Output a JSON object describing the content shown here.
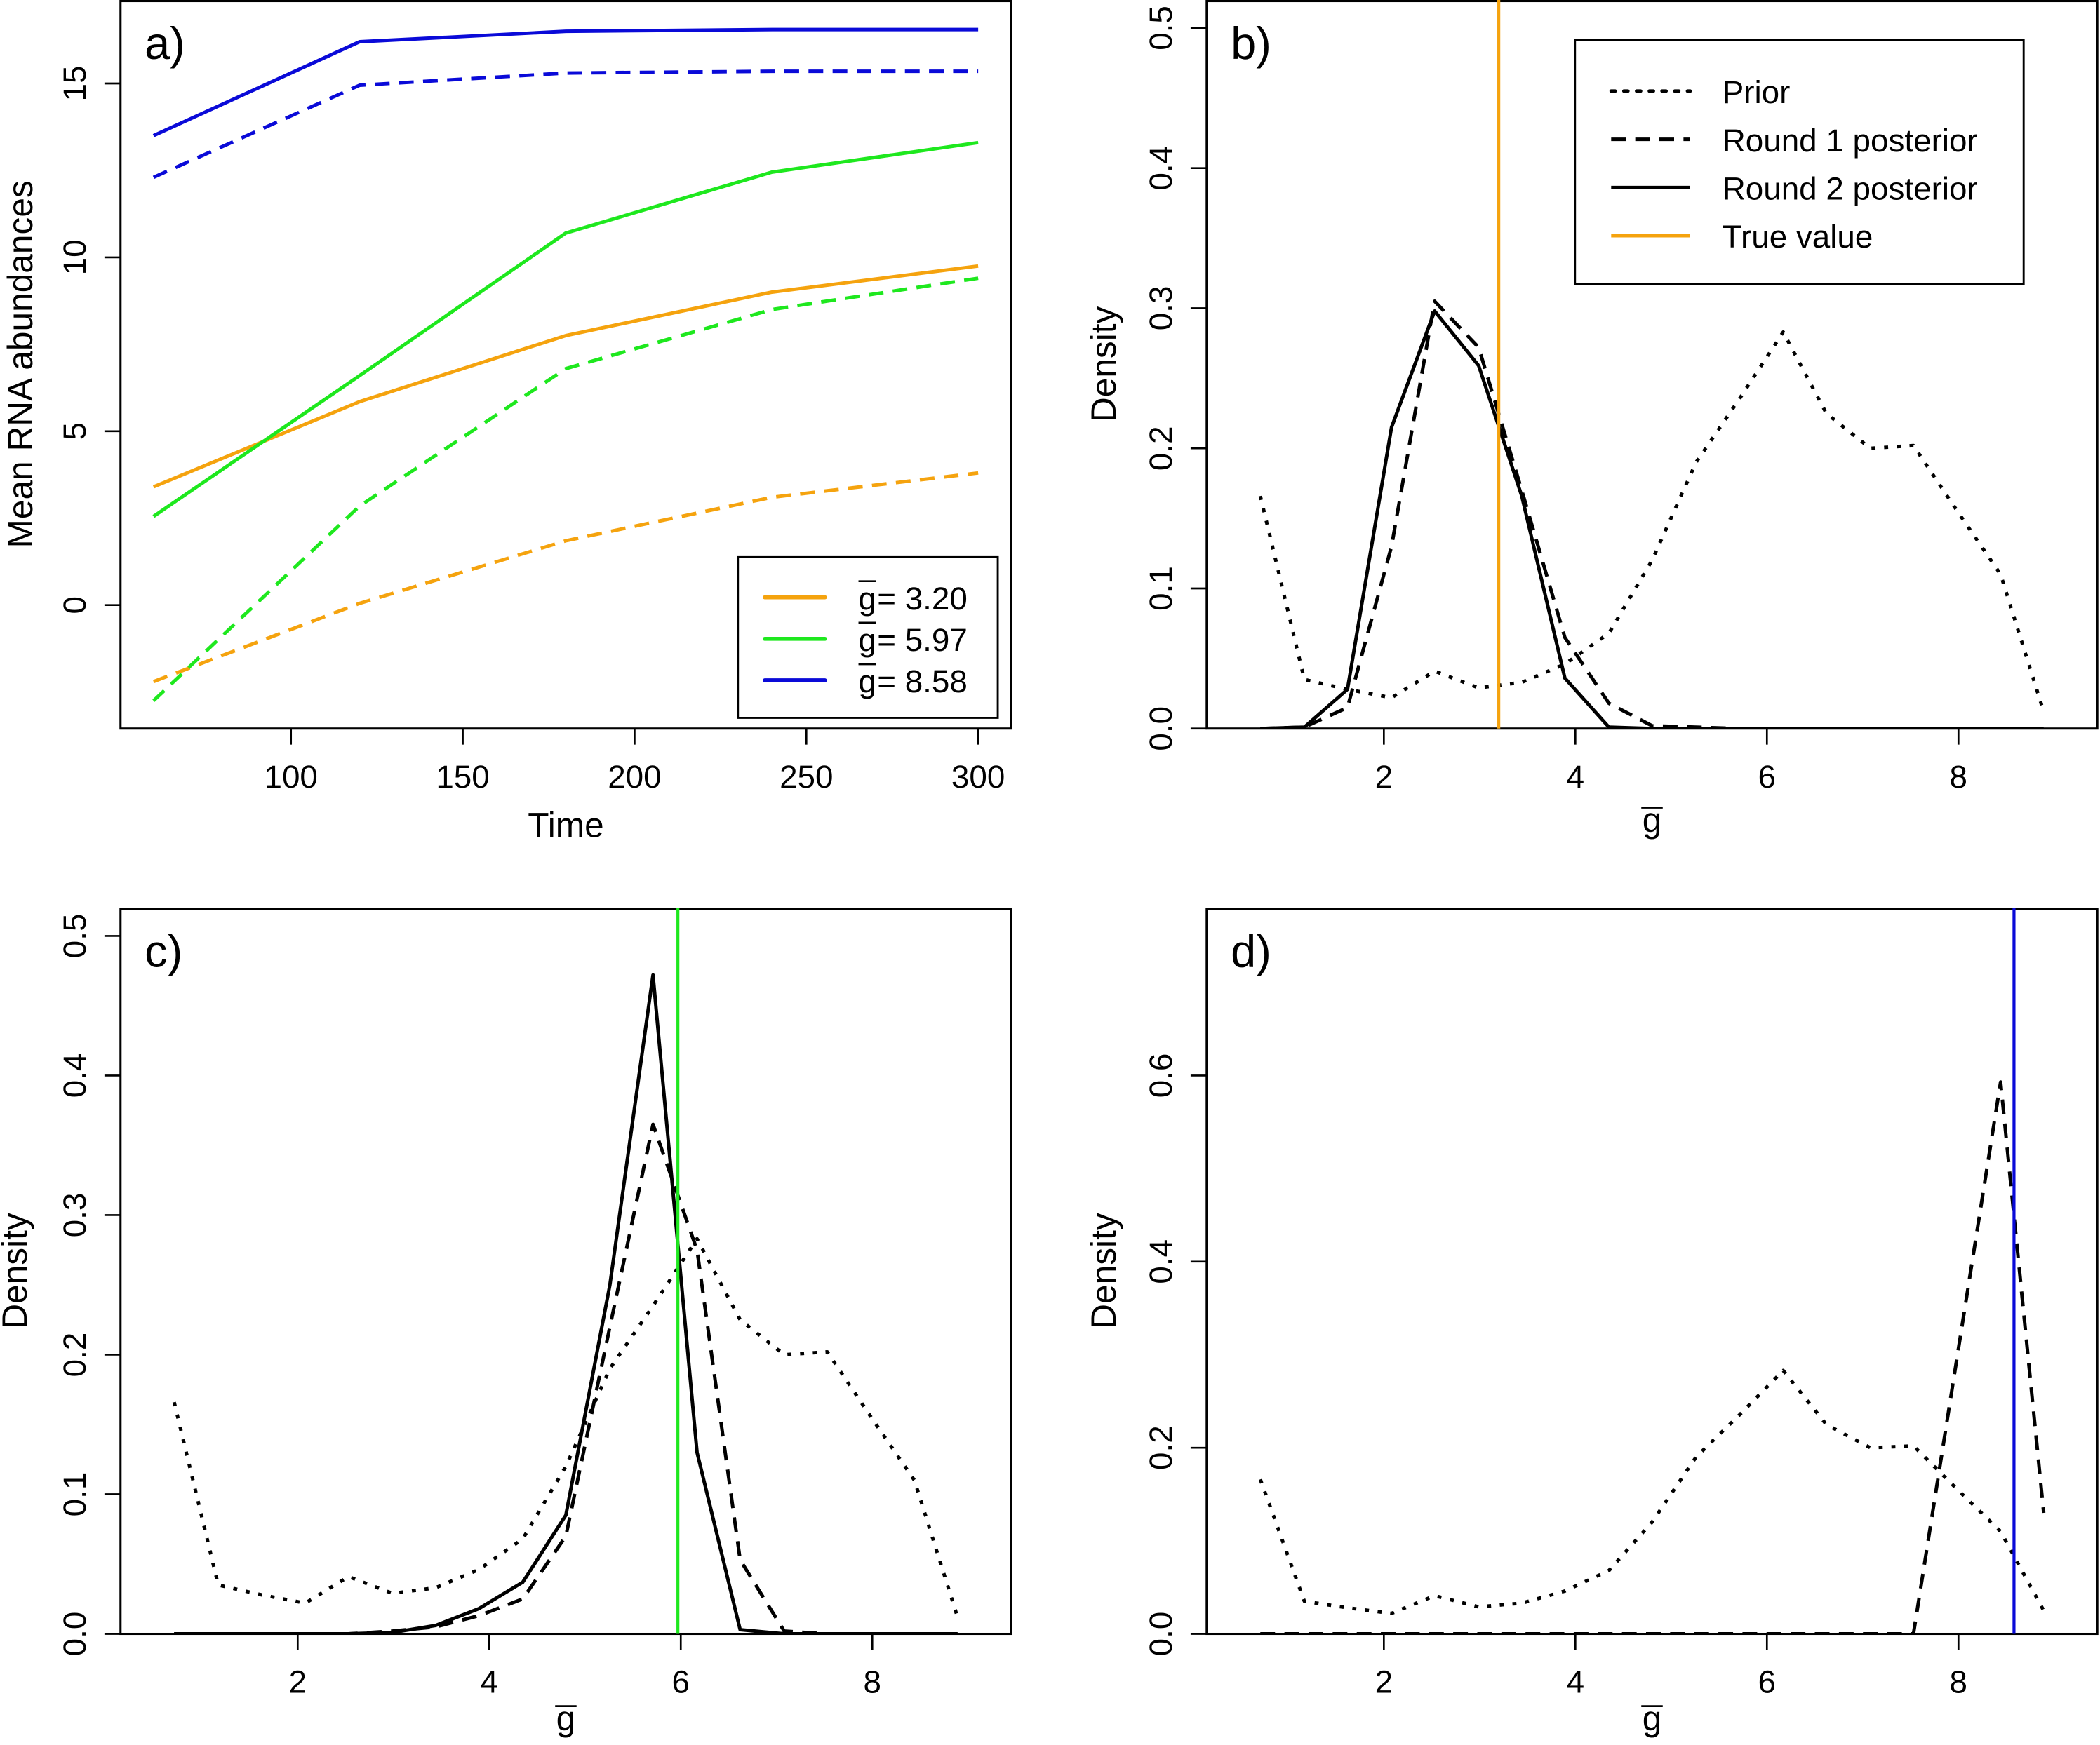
{
  "colors": {
    "orange": "#F5A30E",
    "green": "#1EE81E",
    "blue": "#0A0AD8",
    "black": "#000000"
  },
  "chart_data": [
    {
      "id": "a",
      "type": "line",
      "panel_label": "a)",
      "title": "",
      "xlabel": "Time",
      "ylabel": "Mean RNA abundances",
      "xlim": [
        50.4,
        309.6
      ],
      "ylim": [
        -3.55,
        17.4
      ],
      "xticks": [
        100,
        150,
        200,
        250,
        300
      ],
      "xtick_labels": [
        "100",
        "150",
        "200",
        "250",
        "300"
      ],
      "yticks": [
        0,
        5,
        10,
        15
      ],
      "ytick_labels": [
        "0",
        "5",
        "10",
        "15"
      ],
      "grid": false,
      "x": [
        60,
        120,
        180,
        240,
        300
      ],
      "series": [
        {
          "name": "g̅ = 3.20 (solid)",
          "color_key": "orange",
          "style": "solid",
          "values": [
            3.4,
            5.85,
            7.75,
            9.0,
            9.75
          ]
        },
        {
          "name": "g̅ = 3.20 (dashed)",
          "color_key": "orange",
          "style": "dashed",
          "values": [
            -2.2,
            0.05,
            1.85,
            3.1,
            3.8
          ]
        },
        {
          "name": "g̅ = 5.97 (solid)",
          "color_key": "green",
          "style": "solid",
          "values": [
            2.55,
            6.6,
            10.7,
            12.45,
            13.3
          ]
        },
        {
          "name": "g̅ = 5.97 (dashed)",
          "color_key": "green",
          "style": "dashed",
          "values": [
            -2.75,
            2.85,
            6.8,
            8.5,
            9.4
          ]
        },
        {
          "name": "g̅ = 8.58 (solid)",
          "color_key": "blue",
          "style": "solid",
          "values": [
            13.5,
            16.2,
            16.5,
            16.55,
            16.55
          ]
        },
        {
          "name": "g̅ = 8.58 (dashed)",
          "color_key": "blue",
          "style": "dashed",
          "values": [
            12.3,
            14.95,
            15.3,
            15.35,
            15.35
          ]
        }
      ],
      "legend": {
        "placement": "bottom-right",
        "entries": [
          {
            "symbol": "g",
            "text": " = 3.20",
            "color_key": "orange",
            "style": "solid"
          },
          {
            "symbol": "g",
            "text": " = 5.97",
            "color_key": "green",
            "style": "solid"
          },
          {
            "symbol": "g",
            "text": " = 8.58",
            "color_key": "blue",
            "style": "solid"
          }
        ]
      }
    },
    {
      "id": "b",
      "type": "line",
      "panel_label": "b)",
      "xlabel": "g",
      "xlabel_overline": true,
      "ylabel": "Density",
      "xlim": [
        0.15,
        9.45
      ],
      "ylim": [
        0,
        0.52
      ],
      "xticks": [
        2,
        4,
        6,
        8
      ],
      "xtick_labels": [
        "2",
        "4",
        "6",
        "8"
      ],
      "yticks": [
        0,
        0.1,
        0.2,
        0.3,
        0.4,
        0.5
      ],
      "ytick_labels": [
        "0.0",
        "0.1",
        "0.2",
        "0.3",
        "0.4",
        "0.5"
      ],
      "grid": false,
      "x": [
        0.71,
        1.17,
        1.62,
        2.08,
        2.53,
        2.99,
        3.44,
        3.89,
        4.35,
        4.8,
        5.26,
        5.71,
        6.17,
        6.62,
        7.08,
        7.53,
        7.99,
        8.44,
        8.89
      ],
      "true_value": {
        "x": 3.2,
        "color_key": "orange"
      },
      "series": [
        {
          "name": "Prior",
          "style": "dotted",
          "values": [
            0.166,
            0.035,
            0.028,
            0.022,
            0.041,
            0.029,
            0.033,
            0.046,
            0.068,
            0.12,
            0.19,
            0.235,
            0.283,
            0.225,
            0.2,
            0.202,
            0.155,
            0.11,
            0.012
          ]
        },
        {
          "name": "Round 1 posterior",
          "style": "dashed",
          "values": [
            0,
            0.001,
            0.015,
            0.13,
            0.305,
            0.272,
            0.17,
            0.065,
            0.018,
            0.002,
            0.001,
            0,
            0,
            0,
            0,
            0,
            0,
            0,
            0
          ]
        },
        {
          "name": "Round 2 posterior",
          "style": "solid",
          "values": [
            0,
            0.001,
            0.028,
            0.215,
            0.298,
            0.259,
            0.166,
            0.036,
            0.001,
            0,
            0,
            0,
            0,
            0,
            0,
            0,
            0,
            0,
            0
          ]
        }
      ],
      "legend": {
        "placement": "top-right",
        "entries": [
          {
            "text": "Prior",
            "style": "dotted",
            "color_key": "black"
          },
          {
            "text": "Round 1 posterior",
            "style": "dashed",
            "color_key": "black"
          },
          {
            "text": "Round 2 posterior",
            "style": "solid",
            "color_key": "black"
          },
          {
            "text": "True value",
            "style": "solid",
            "color_key": "orange"
          }
        ]
      }
    },
    {
      "id": "c",
      "type": "line",
      "panel_label": "c)",
      "xlabel": "g",
      "xlabel_overline": true,
      "ylabel": "Density",
      "xlim": [
        0.15,
        9.45
      ],
      "ylim": [
        0,
        0.52
      ],
      "xticks": [
        2,
        4,
        6,
        8
      ],
      "xtick_labels": [
        "2",
        "4",
        "6",
        "8"
      ],
      "yticks": [
        0,
        0.1,
        0.2,
        0.3,
        0.4,
        0.5
      ],
      "ytick_labels": [
        "0.0",
        "0.1",
        "0.2",
        "0.3",
        "0.4",
        "0.5"
      ],
      "grid": false,
      "x": [
        0.71,
        1.17,
        1.62,
        2.08,
        2.53,
        2.99,
        3.44,
        3.89,
        4.35,
        4.8,
        5.26,
        5.71,
        6.17,
        6.62,
        7.08,
        7.53,
        7.99,
        8.44,
        8.89
      ],
      "true_value": {
        "x": 5.97,
        "color_key": "green"
      },
      "series": [
        {
          "name": "Prior",
          "style": "dotted",
          "values": [
            0.166,
            0.035,
            0.028,
            0.022,
            0.041,
            0.029,
            0.033,
            0.046,
            0.068,
            0.12,
            0.19,
            0.235,
            0.283,
            0.225,
            0.2,
            0.202,
            0.155,
            0.11,
            0.012
          ]
        },
        {
          "name": "Round 1 posterior",
          "style": "dashed",
          "values": [
            0,
            0,
            0,
            0,
            0,
            0.002,
            0.005,
            0.013,
            0.025,
            0.07,
            0.22,
            0.365,
            0.275,
            0.053,
            0.002,
            0,
            0,
            0,
            0
          ]
        },
        {
          "name": "Round 2 posterior",
          "style": "solid",
          "values": [
            0,
            0,
            0,
            0,
            0,
            0.001,
            0.006,
            0.018,
            0.037,
            0.085,
            0.25,
            0.472,
            0.13,
            0.003,
            0,
            0,
            0,
            0,
            0
          ]
        }
      ]
    },
    {
      "id": "d",
      "type": "line",
      "panel_label": "d)",
      "xlabel": "g",
      "xlabel_overline": true,
      "ylabel": "Density",
      "xlim": [
        0.15,
        9.45
      ],
      "ylim": [
        0,
        0.78
      ],
      "xticks": [
        2,
        4,
        6,
        8
      ],
      "xtick_labels": [
        "2",
        "4",
        "6",
        "8"
      ],
      "yticks": [
        0,
        0.2,
        0.4,
        0.6
      ],
      "ytick_labels": [
        "0.0",
        "0.2",
        "0.4",
        "0.6"
      ],
      "grid": false,
      "x": [
        0.71,
        1.17,
        1.62,
        2.08,
        2.53,
        2.99,
        3.44,
        3.89,
        4.35,
        4.8,
        5.26,
        5.71,
        6.17,
        6.62,
        7.08,
        7.53,
        7.99,
        8.44,
        8.89
      ],
      "true_value": {
        "x": 8.58,
        "color_key": "blue"
      },
      "series": [
        {
          "name": "Prior",
          "style": "dotted",
          "values": [
            0.166,
            0.035,
            0.028,
            0.022,
            0.041,
            0.029,
            0.033,
            0.046,
            0.068,
            0.12,
            0.19,
            0.235,
            0.283,
            0.225,
            0.2,
            0.202,
            0.155,
            0.11,
            0.025
          ]
        },
        {
          "name": "Round 1 posterior",
          "style": "dashed",
          "values": [
            0,
            0,
            0,
            0,
            0,
            0,
            0,
            0,
            0,
            0,
            0,
            0,
            0,
            0,
            0,
            0,
            0.3,
            0.593,
            0.13
          ]
        }
      ]
    }
  ]
}
